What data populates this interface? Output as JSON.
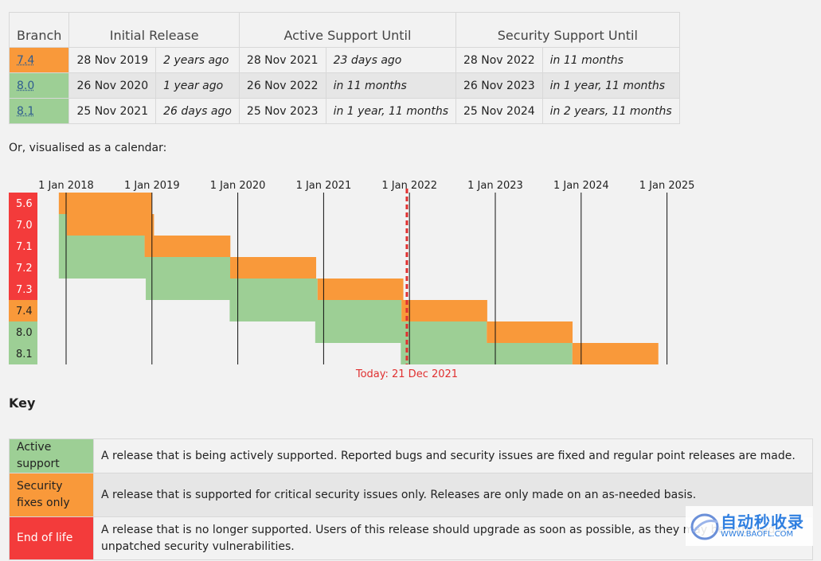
{
  "table": {
    "headers": [
      "Branch",
      "Initial Release",
      "Active Support Until",
      "Security Support Until"
    ],
    "rows": [
      {
        "branch": "7.4",
        "status": "security",
        "initial_date": "28 Nov 2019",
        "initial_rel": "2 years ago",
        "active_date": "28 Nov 2021",
        "active_rel": "23 days ago",
        "security_date": "28 Nov 2022",
        "security_rel": "in 11 months"
      },
      {
        "branch": "8.0",
        "status": "active",
        "initial_date": "26 Nov 2020",
        "initial_rel": "1 year ago",
        "active_date": "26 Nov 2022",
        "active_rel": "in 11 months",
        "security_date": "26 Nov 2023",
        "security_rel": "in 1 year, 11 months"
      },
      {
        "branch": "8.1",
        "status": "active",
        "initial_date": "25 Nov 2021",
        "initial_rel": "26 days ago",
        "active_date": "25 Nov 2023",
        "active_rel": "in 1 year, 11 months",
        "security_date": "25 Nov 2024",
        "security_rel": "in 2 years, 11 months"
      }
    ]
  },
  "calendar_caption": "Or, visualised as a calendar:",
  "chart_data": {
    "type": "gantt",
    "x_axis": {
      "type": "date",
      "range": [
        "2017-12-01",
        "2025-01-01"
      ],
      "ticks": [
        "1 Jan 2018",
        "1 Jan 2019",
        "1 Jan 2020",
        "1 Jan 2021",
        "1 Jan 2022",
        "1 Jan 2023",
        "1 Jan 2024",
        "1 Jan 2025"
      ]
    },
    "today_label": "Today: 21 Dec 2021",
    "today_date": "2021-12-21",
    "branches": [
      {
        "name": "5.6",
        "status": "eol",
        "release": "2014-08-28",
        "active_until": "2017-01-19",
        "security_until": "2018-12-31"
      },
      {
        "name": "7.0",
        "status": "eol",
        "release": "2015-12-03",
        "active_until": "2018-01-04",
        "security_until": "2019-01-10"
      },
      {
        "name": "7.1",
        "status": "eol",
        "release": "2016-12-01",
        "active_until": "2018-12-01",
        "security_until": "2019-12-01"
      },
      {
        "name": "7.2",
        "status": "eol",
        "release": "2017-11-30",
        "active_until": "2019-11-30",
        "security_until": "2020-11-30"
      },
      {
        "name": "7.3",
        "status": "eol",
        "release": "2018-12-06",
        "active_until": "2020-12-06",
        "security_until": "2021-12-06"
      },
      {
        "name": "7.4",
        "status": "security",
        "release": "2019-11-28",
        "active_until": "2021-11-28",
        "security_until": "2022-11-28"
      },
      {
        "name": "8.0",
        "status": "active",
        "release": "2020-11-26",
        "active_until": "2022-11-26",
        "security_until": "2023-11-26"
      },
      {
        "name": "8.1",
        "status": "active",
        "release": "2021-11-25",
        "active_until": "2023-11-25",
        "security_until": "2024-11-25"
      }
    ]
  },
  "colors": {
    "active": "#9dcf95",
    "security": "#f9993a",
    "eol": "#f33b3b",
    "today": "#e03030",
    "grid": "#111111"
  },
  "key": {
    "heading": "Key",
    "items": [
      {
        "label": "Active support",
        "status": "active",
        "description": "A release that is being actively supported. Reported bugs and security issues are fixed and regular point releases are made."
      },
      {
        "label": "Security fixes only",
        "status": "security",
        "description": "A release that is supported for critical security issues only. Releases are only made on an as-needed basis."
      },
      {
        "label": "End of life",
        "status": "eol",
        "description": "A release that is no longer supported. Users of this release should upgrade as soon as possible, as they may be exposed to unpatched security vulnerabilities."
      }
    ]
  },
  "watermark": {
    "text": "自动秒收录",
    "sub": "WWW.BAOFL.COM"
  }
}
